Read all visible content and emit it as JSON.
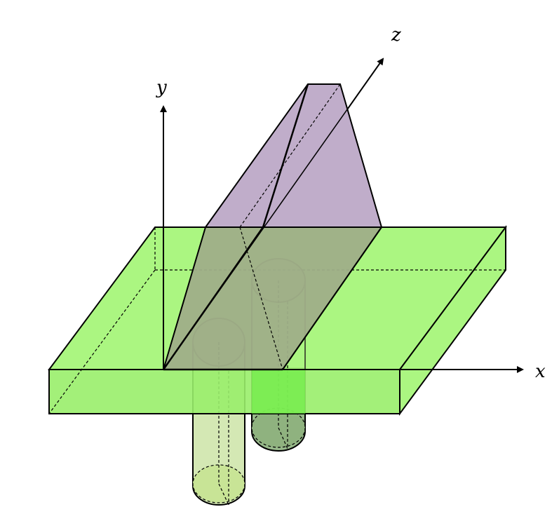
{
  "axes": {
    "x_label": "x",
    "y_label": "y",
    "z_label": "z"
  },
  "colors": {
    "slab": "#a6f57a",
    "slab_front": "#99ee6a",
    "prism": "#b9a4c4",
    "prism_over_slab": "#9fae88",
    "pillar_left": "#d4e8b4",
    "pillar_left_cap": "#c8e496",
    "pillar_right": "#97b98a",
    "pillar_right_cap": "#8fb27f",
    "outline": "#000000"
  }
}
